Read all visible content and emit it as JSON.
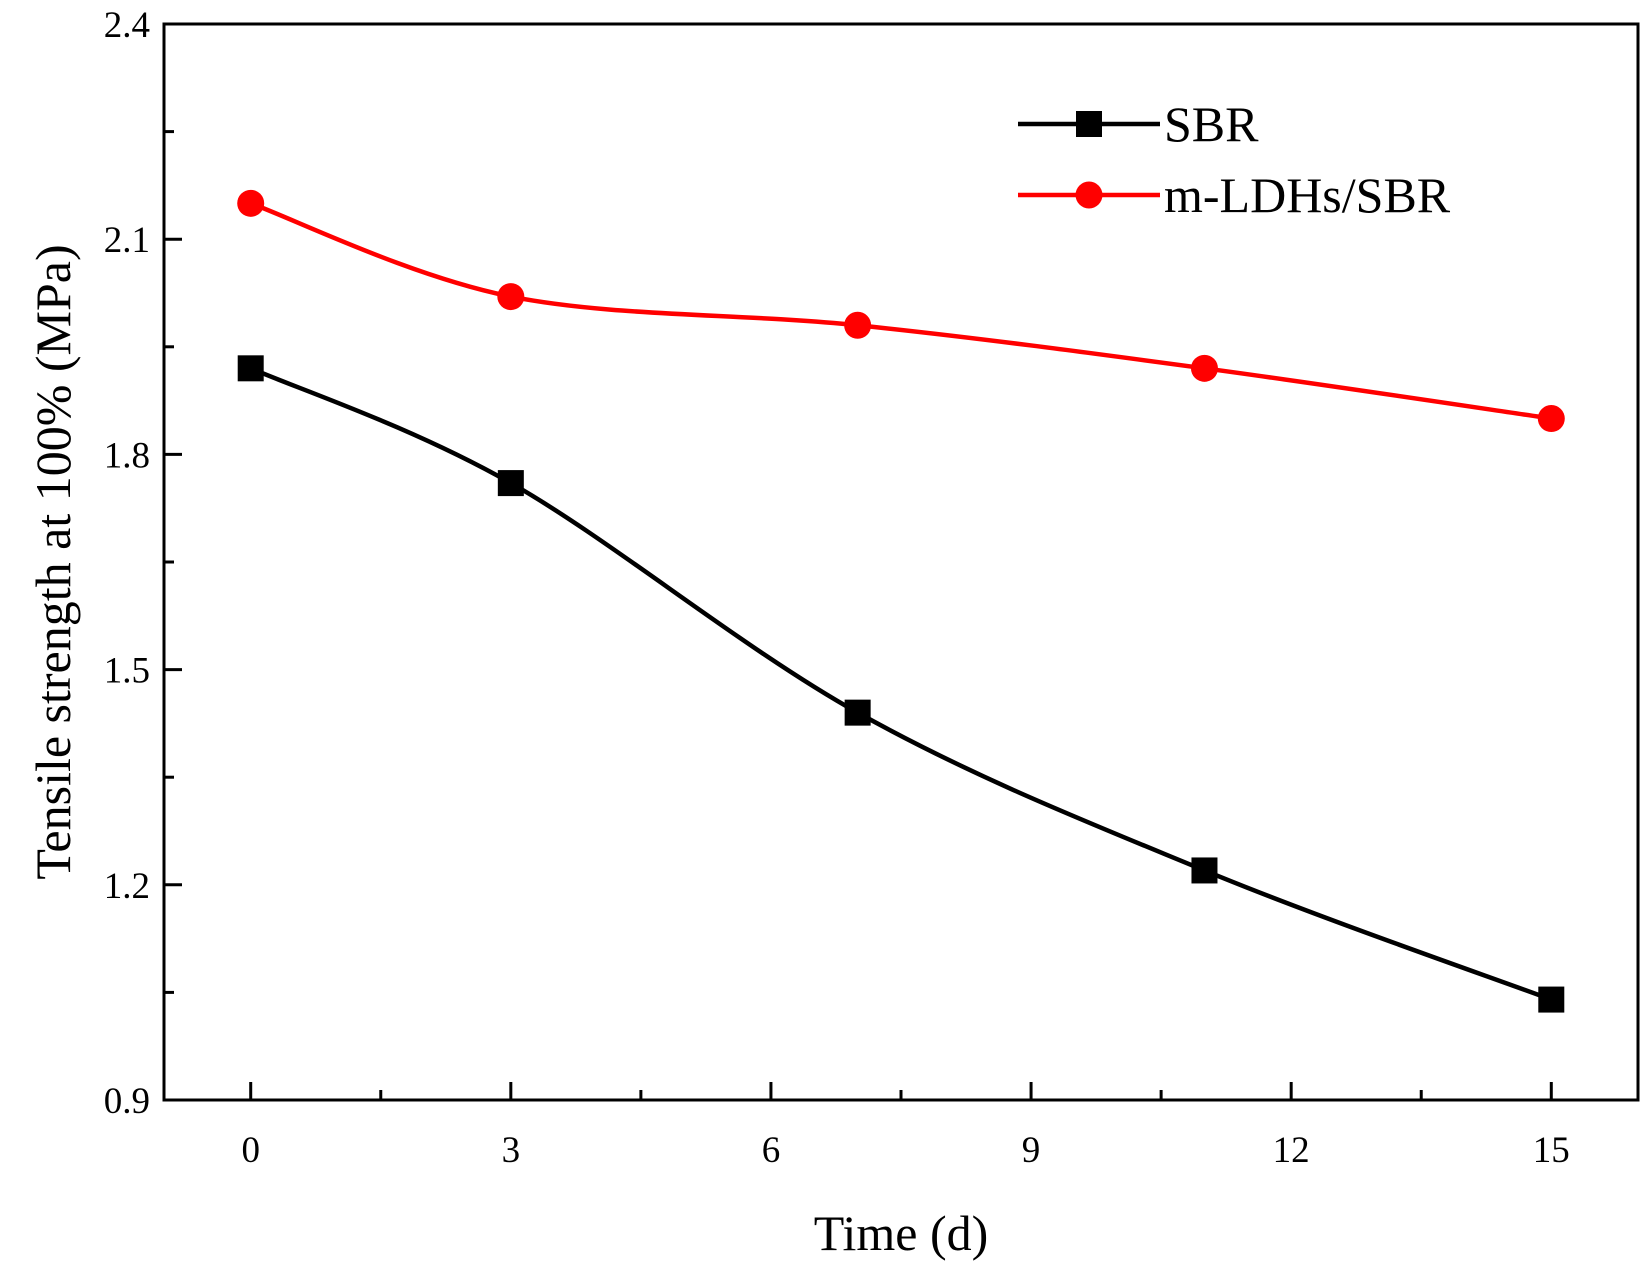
{
  "chart_data": {
    "type": "line",
    "title": "",
    "xlabel": "Time  (d)",
    "ylabel": "Tensile strength at 100%  (MPa)",
    "xlim": [
      -1,
      16
    ],
    "ylim": [
      0.9,
      2.4
    ],
    "x_ticks": [
      0,
      3,
      6,
      9,
      12,
      15
    ],
    "x_tick_labels": [
      "0",
      "3",
      "6",
      "9",
      "12",
      "15"
    ],
    "y_ticks": [
      0.9,
      1.2,
      1.5,
      1.8,
      2.1,
      2.4
    ],
    "y_tick_labels": [
      "0.9",
      "1.2",
      "1.5",
      "1.8",
      "2.1",
      "2.4"
    ],
    "grid": false,
    "legend_position": "top-right",
    "series": [
      {
        "name": "SBR",
        "color": "#000000",
        "marker": "square",
        "x": [
          0,
          3,
          7,
          11,
          15
        ],
        "y": [
          1.92,
          1.76,
          1.44,
          1.22,
          1.04
        ]
      },
      {
        "name": "m-LDHs/SBR",
        "color": "#ff0000",
        "marker": "circle",
        "x": [
          0,
          3,
          7,
          11,
          15
        ],
        "y": [
          2.15,
          2.02,
          1.98,
          1.92,
          1.85
        ]
      }
    ]
  }
}
